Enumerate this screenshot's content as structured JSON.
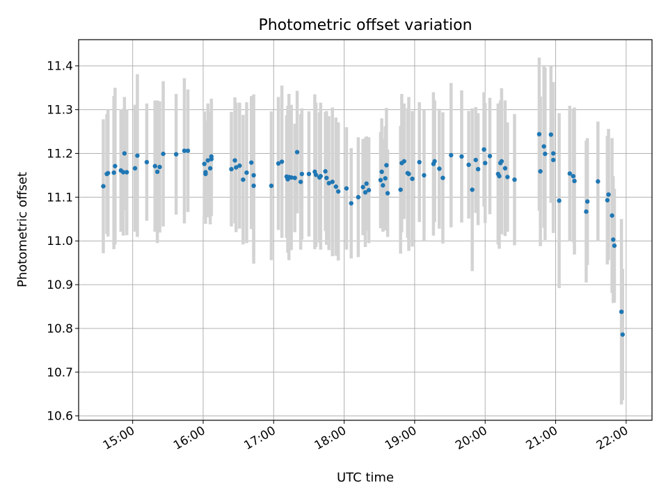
{
  "chart_data": {
    "type": "scatter",
    "title": "Photometric offset variation",
    "xlabel": "UTC time",
    "ylabel": "Photometric offset",
    "xlim": [
      "14:14",
      "22:22"
    ],
    "ylim": [
      10.59,
      11.46
    ],
    "x_ticks": [
      "15:00",
      "16:00",
      "17:00",
      "18:00",
      "19:00",
      "20:00",
      "21:00",
      "22:00"
    ],
    "y_ticks": [
      "10.6",
      "10.7",
      "10.8",
      "10.9",
      "11.0",
      "11.1",
      "11.2",
      "11.3",
      "11.4"
    ],
    "grid": true,
    "colors": {
      "point": "#1f77b4",
      "errorbar": "#d3d3d3",
      "grid": "#b0b0b0"
    },
    "series": [
      {
        "marker": "dot",
        "points": [
          {
            "x": "14:35",
            "y": 11.125,
            "err": 0.153
          },
          {
            "x": "14:38",
            "y": 11.153,
            "err": 0.137
          },
          {
            "x": "14:39",
            "y": 11.155,
            "err": 0.145
          },
          {
            "x": "14:44",
            "y": 11.156,
            "err": 0.175
          },
          {
            "x": "14:45",
            "y": 11.171,
            "err": 0.179
          },
          {
            "x": "14:50",
            "y": 11.161,
            "err": 0.14
          },
          {
            "x": "14:52",
            "y": 11.157,
            "err": 0.145
          },
          {
            "x": "14:53",
            "y": 11.2,
            "err": 0.129
          },
          {
            "x": "14:55",
            "y": 11.157,
            "err": 0.144
          },
          {
            "x": "15:02",
            "y": 11.166,
            "err": 0.145
          },
          {
            "x": "15:04",
            "y": 11.195,
            "err": 0.186
          },
          {
            "x": "15:12",
            "y": 11.18,
            "err": 0.134
          },
          {
            "x": "15:19",
            "y": 11.171,
            "err": 0.15
          },
          {
            "x": "15:21",
            "y": 11.158,
            "err": 0.163
          },
          {
            "x": "15:23",
            "y": 11.169,
            "err": 0.15
          },
          {
            "x": "15:26",
            "y": 11.199,
            "err": 0.166
          },
          {
            "x": "15:37",
            "y": 11.198,
            "err": 0.138
          },
          {
            "x": "15:44",
            "y": 11.206,
            "err": 0.166
          },
          {
            "x": "15:47",
            "y": 11.206,
            "err": 0.14
          },
          {
            "x": "16:01",
            "y": 11.176,
            "err": 0.12
          },
          {
            "x": "16:02",
            "y": 11.153,
            "err": 0.1
          },
          {
            "x": "16:02",
            "y": 11.157,
            "err": 0.118
          },
          {
            "x": "16:04",
            "y": 11.184,
            "err": 0.13
          },
          {
            "x": "16:06",
            "y": 11.166,
            "err": 0.128
          },
          {
            "x": "16:07",
            "y": 11.193,
            "err": 0.132
          },
          {
            "x": "16:07",
            "y": 11.187,
            "err": 0.13
          },
          {
            "x": "16:24",
            "y": 11.164,
            "err": 0.131
          },
          {
            "x": "16:27",
            "y": 11.184,
            "err": 0.144
          },
          {
            "x": "16:28",
            "y": 11.168,
            "err": 0.148
          },
          {
            "x": "16:31",
            "y": 11.172,
            "err": 0.144
          },
          {
            "x": "16:34",
            "y": 11.14,
            "err": 0.148
          },
          {
            "x": "16:37",
            "y": 11.156,
            "err": 0.161
          },
          {
            "x": "16:41",
            "y": 11.179,
            "err": 0.152
          },
          {
            "x": "16:43",
            "y": 11.15,
            "err": 0.185
          },
          {
            "x": "16:43",
            "y": 11.126,
            "err": 0.178
          },
          {
            "x": "16:58",
            "y": 11.126,
            "err": 0.17
          },
          {
            "x": "17:04",
            "y": 11.177,
            "err": 0.152
          },
          {
            "x": "17:07",
            "y": 11.181,
            "err": 0.174
          },
          {
            "x": "17:11",
            "y": 11.147,
            "err": 0.14
          },
          {
            "x": "17:12",
            "y": 11.141,
            "err": 0.168
          },
          {
            "x": "17:13",
            "y": 11.146,
            "err": 0.19
          },
          {
            "x": "17:15",
            "y": 11.145,
            "err": 0.166
          },
          {
            "x": "17:18",
            "y": 11.144,
            "err": 0.124
          },
          {
            "x": "17:20",
            "y": 11.203,
            "err": 0.14
          },
          {
            "x": "17:23",
            "y": 11.135,
            "err": 0.155
          },
          {
            "x": "17:24",
            "y": 11.153,
            "err": 0.15
          },
          {
            "x": "17:30",
            "y": 11.153,
            "err": 0.143
          },
          {
            "x": "17:35",
            "y": 11.158,
            "err": 0.177
          },
          {
            "x": "17:36",
            "y": 11.151,
            "err": 0.165
          },
          {
            "x": "17:39",
            "y": 11.145,
            "err": 0.149
          },
          {
            "x": "17:40",
            "y": 11.148,
            "err": 0.168
          },
          {
            "x": "17:44",
            "y": 11.159,
            "err": 0.136
          },
          {
            "x": "17:45",
            "y": 11.144,
            "err": 0.153
          },
          {
            "x": "17:47",
            "y": 11.132,
            "err": 0.153
          },
          {
            "x": "17:50",
            "y": 11.135,
            "err": 0.17
          },
          {
            "x": "17:53",
            "y": 11.124,
            "err": 0.158
          },
          {
            "x": "17:55",
            "y": 11.113,
            "err": 0.158
          },
          {
            "x": "18:02",
            "y": 11.12,
            "err": 0.14
          },
          {
            "x": "18:06",
            "y": 11.086,
            "err": 0.126
          },
          {
            "x": "18:12",
            "y": 11.1,
            "err": 0.137
          },
          {
            "x": "18:16",
            "y": 11.123,
            "err": 0.11
          },
          {
            "x": "18:18",
            "y": 11.111,
            "err": 0.125
          },
          {
            "x": "18:19",
            "y": 11.131,
            "err": 0.108
          },
          {
            "x": "18:21",
            "y": 11.116,
            "err": 0.121
          },
          {
            "x": "18:31",
            "y": 11.139,
            "err": 0.11
          },
          {
            "x": "18:32",
            "y": 11.158,
            "err": 0.122
          },
          {
            "x": "18:33",
            "y": 11.127,
            "err": 0.106
          },
          {
            "x": "18:35",
            "y": 11.143,
            "err": 0.119
          },
          {
            "x": "18:36",
            "y": 11.173,
            "err": 0.131
          },
          {
            "x": "18:37",
            "y": 11.109,
            "err": 0.1
          },
          {
            "x": "18:48",
            "y": 11.117,
            "err": 0.146
          },
          {
            "x": "18:49",
            "y": 11.178,
            "err": 0.158
          },
          {
            "x": "18:51",
            "y": 11.182,
            "err": 0.132
          },
          {
            "x": "18:54",
            "y": 11.155,
            "err": 0.148
          },
          {
            "x": "18:55",
            "y": 11.153,
            "err": 0.176
          },
          {
            "x": "18:58",
            "y": 11.142,
            "err": 0.155
          },
          {
            "x": "19:04",
            "y": 11.18,
            "err": 0.137
          },
          {
            "x": "19:08",
            "y": 11.15,
            "err": 0.15
          },
          {
            "x": "19:16",
            "y": 11.176,
            "err": 0.164
          },
          {
            "x": "19:17",
            "y": 11.182,
            "err": 0.139
          },
          {
            "x": "19:21",
            "y": 11.165,
            "err": 0.137
          },
          {
            "x": "19:24",
            "y": 11.144,
            "err": 0.15
          },
          {
            "x": "19:31",
            "y": 11.196,
            "err": 0.165
          },
          {
            "x": "19:40",
            "y": 11.193,
            "err": 0.151
          },
          {
            "x": "19:46",
            "y": 11.174,
            "err": 0.123
          },
          {
            "x": "19:49",
            "y": 11.117,
            "err": 0.186
          },
          {
            "x": "19:52",
            "y": 11.185,
            "err": 0.121
          },
          {
            "x": "19:54",
            "y": 11.164,
            "err": 0.128
          },
          {
            "x": "19:59",
            "y": 11.209,
            "err": 0.131
          },
          {
            "x": "20:00",
            "y": 11.178,
            "err": 0.137
          },
          {
            "x": "20:04",
            "y": 11.194,
            "err": 0.133
          },
          {
            "x": "20:11",
            "y": 11.153,
            "err": 0.161
          },
          {
            "x": "20:12",
            "y": 11.148,
            "err": 0.166
          },
          {
            "x": "20:13",
            "y": 11.178,
            "err": 0.143
          },
          {
            "x": "20:14",
            "y": 11.182,
            "err": 0.167
          },
          {
            "x": "20:17",
            "y": 11.166,
            "err": 0.155
          },
          {
            "x": "20:19",
            "y": 11.146,
            "err": 0.125
          },
          {
            "x": "20:25",
            "y": 11.14,
            "err": 0.15
          },
          {
            "x": "20:46",
            "y": 11.244,
            "err": 0.175
          },
          {
            "x": "20:47",
            "y": 11.159,
            "err": 0.171
          },
          {
            "x": "20:50",
            "y": 11.216,
            "err": 0.186
          },
          {
            "x": "20:51",
            "y": 11.199,
            "err": 0.197
          },
          {
            "x": "20:56",
            "y": 11.243,
            "err": 0.156
          },
          {
            "x": "20:58",
            "y": 11.2,
            "err": 0.163
          },
          {
            "x": "20:58",
            "y": 11.185,
            "err": 0.167
          },
          {
            "x": "21:03",
            "y": 11.092,
            "err": 0.2
          },
          {
            "x": "21:12",
            "y": 11.154,
            "err": 0.155
          },
          {
            "x": "21:15",
            "y": 11.148,
            "err": 0.151
          },
          {
            "x": "21:16",
            "y": 11.137,
            "err": 0.168
          },
          {
            "x": "21:26",
            "y": 11.067,
            "err": 0.162
          },
          {
            "x": "21:27",
            "y": 11.09,
            "err": 0.145
          },
          {
            "x": "21:36",
            "y": 11.136,
            "err": 0.137
          },
          {
            "x": "21:44",
            "y": 11.093,
            "err": 0.147
          },
          {
            "x": "21:45",
            "y": 11.106,
            "err": 0.15
          },
          {
            "x": "21:48",
            "y": 11.058,
            "err": 0.177
          },
          {
            "x": "21:49",
            "y": 11.003,
            "err": 0.145
          },
          {
            "x": "21:50",
            "y": 10.989,
            "err": 0.13
          },
          {
            "x": "21:56",
            "y": 10.838,
            "err": 0.212
          },
          {
            "x": "21:57",
            "y": 10.786,
            "err": 0.15
          }
        ]
      }
    ]
  }
}
